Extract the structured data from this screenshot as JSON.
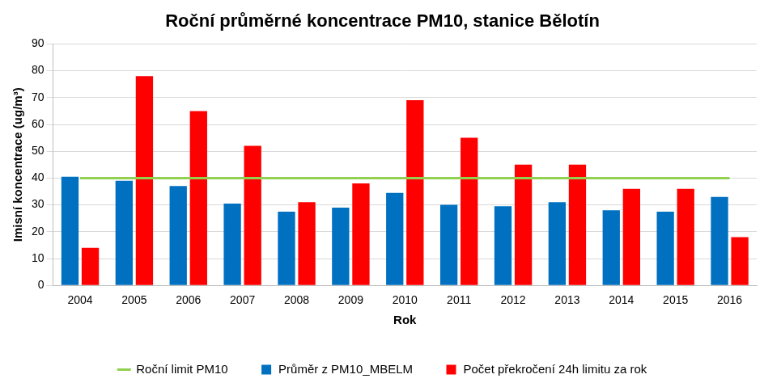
{
  "chart_data": {
    "type": "bar",
    "title": "Roční průměrné koncentrace PM10, stanice Bělotín",
    "x_label": "Rok",
    "y_label": "Imisní koncentrace (ug/m³)",
    "categories": [
      "2004",
      "2005",
      "2006",
      "2007",
      "2008",
      "2009",
      "2010",
      "2011",
      "2012",
      "2013",
      "2014",
      "2015",
      "2016"
    ],
    "series": [
      {
        "name": "Průměr z PM10_MBELM",
        "color": "#0070C0",
        "values": [
          40.5,
          39,
          37,
          30.5,
          27.5,
          29,
          34.5,
          30,
          29.5,
          31,
          28,
          27.5,
          33
        ]
      },
      {
        "name": "Počet překročení 24h limitu za rok",
        "color": "#FF0000",
        "values": [
          14,
          78,
          65,
          52,
          31,
          38,
          69,
          55,
          45,
          45,
          36,
          36,
          18
        ]
      },
      {
        "name": "Roční limit PM10",
        "type": "line",
        "color": "#92D050",
        "values": [
          40,
          40,
          40,
          40,
          40,
          40,
          40,
          40,
          40,
          40,
          40,
          40,
          40
        ]
      }
    ],
    "ylim": [
      0,
      90
    ],
    "yticks": [
      0,
      10,
      20,
      30,
      40,
      50,
      60,
      70,
      80,
      90
    ],
    "grid": true,
    "legend": "bottom"
  }
}
